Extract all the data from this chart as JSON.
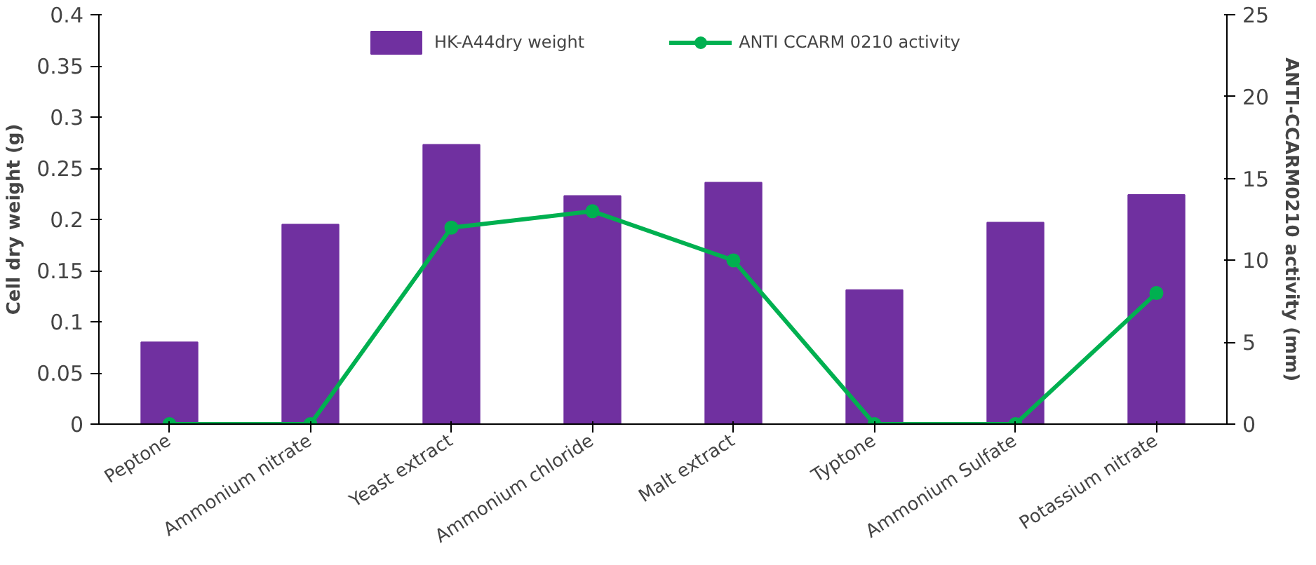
{
  "chart_data": {
    "type": "bar",
    "categories": [
      "Peptone",
      "Ammonium nitrate",
      "Yeast extract",
      "Ammonium chloride",
      "Malt extract",
      "Typtone",
      "Ammonium Sulfate",
      "Potassium nitrate"
    ],
    "ylabel": "Cell dry weight (g)",
    "y2label": "ANTI-CCARM0210 activity (mm)",
    "ylim": [
      0,
      0.4
    ],
    "yticks": [
      0,
      0.05,
      0.1,
      0.15,
      0.2,
      0.25,
      0.3,
      0.35,
      0.4
    ],
    "y2lim": [
      0,
      25
    ],
    "y2ticks": [
      0,
      5,
      10,
      15,
      20,
      25
    ],
    "grid": false,
    "legend": "top",
    "marker": "circle",
    "series": [
      {
        "name": "HK-A44dry weight",
        "color": "#7030a0",
        "values": [
          0.08,
          0.195,
          0.273,
          0.223,
          0.236,
          0.131,
          0.197,
          0.224
        ]
      },
      {
        "name": "ANTI CCARM 0210 activity",
        "type": "line",
        "axis": "y2",
        "color": "#00b050",
        "values": [
          0,
          0,
          12,
          13,
          10,
          0,
          0,
          8
        ]
      }
    ]
  }
}
